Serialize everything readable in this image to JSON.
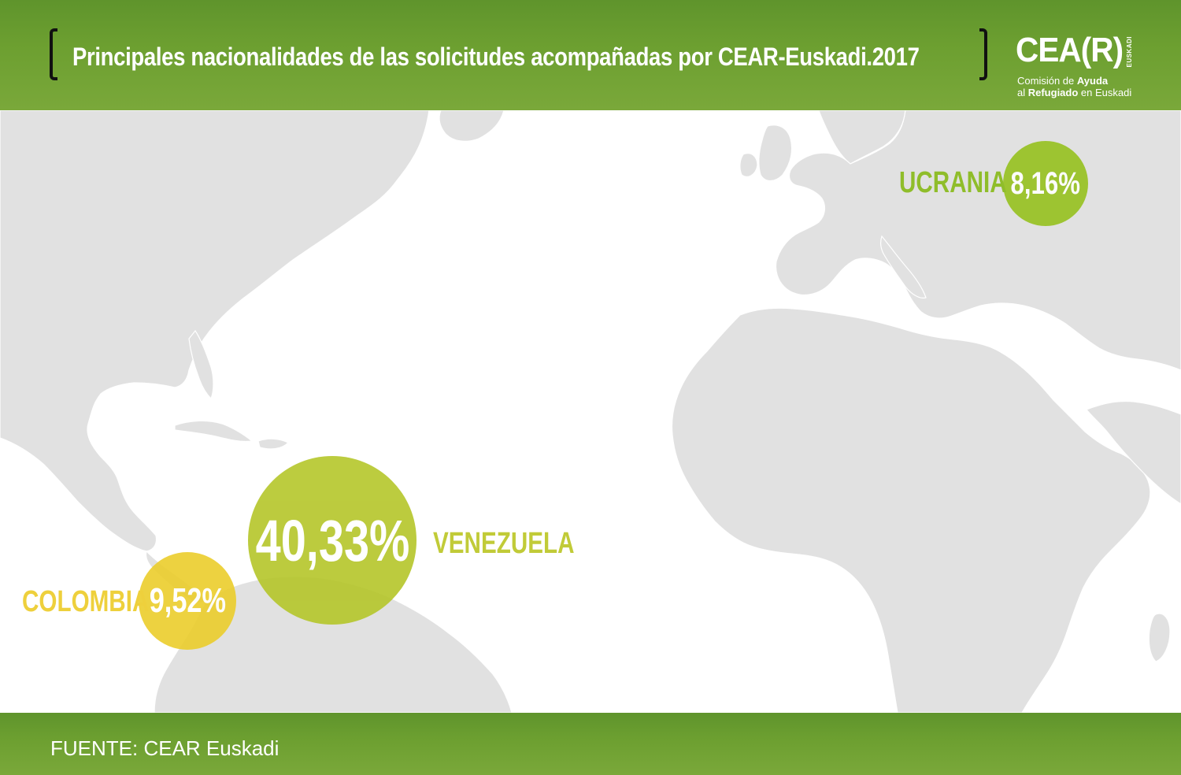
{
  "header": {
    "title": "Principales nacionalidades de las solicitudes acompañadas por CEAR-Euskadi.2017"
  },
  "logo": {
    "mark": "CEA(R)",
    "region": "EUSKADI",
    "line1_prefix": "Comisión de ",
    "line1_bold": "Ayuda",
    "line2_prefix": "al ",
    "line2_bold": "Refugiado",
    "line2_suffix": " en Euskadi"
  },
  "map": {
    "land_color": "#e1e1e1",
    "sea_color": "#ffffff",
    "markers": [
      {
        "country": "UCRANIA",
        "percentage": "8,16%",
        "value": 8.16,
        "color": "#96c11f",
        "label_color": "#8fbd2a"
      },
      {
        "country": "VENEZUELA",
        "percentage": "40,33%",
        "value": 40.33,
        "color": "#b5c62a",
        "label_color": "#c1cb38"
      },
      {
        "country": "COLOMBIA",
        "percentage": "9,52%",
        "value": 9.52,
        "color": "#ecce2c",
        "label_color": "#eed03c"
      }
    ]
  },
  "footer": {
    "source": "FUENTE: CEAR Euskadi"
  }
}
